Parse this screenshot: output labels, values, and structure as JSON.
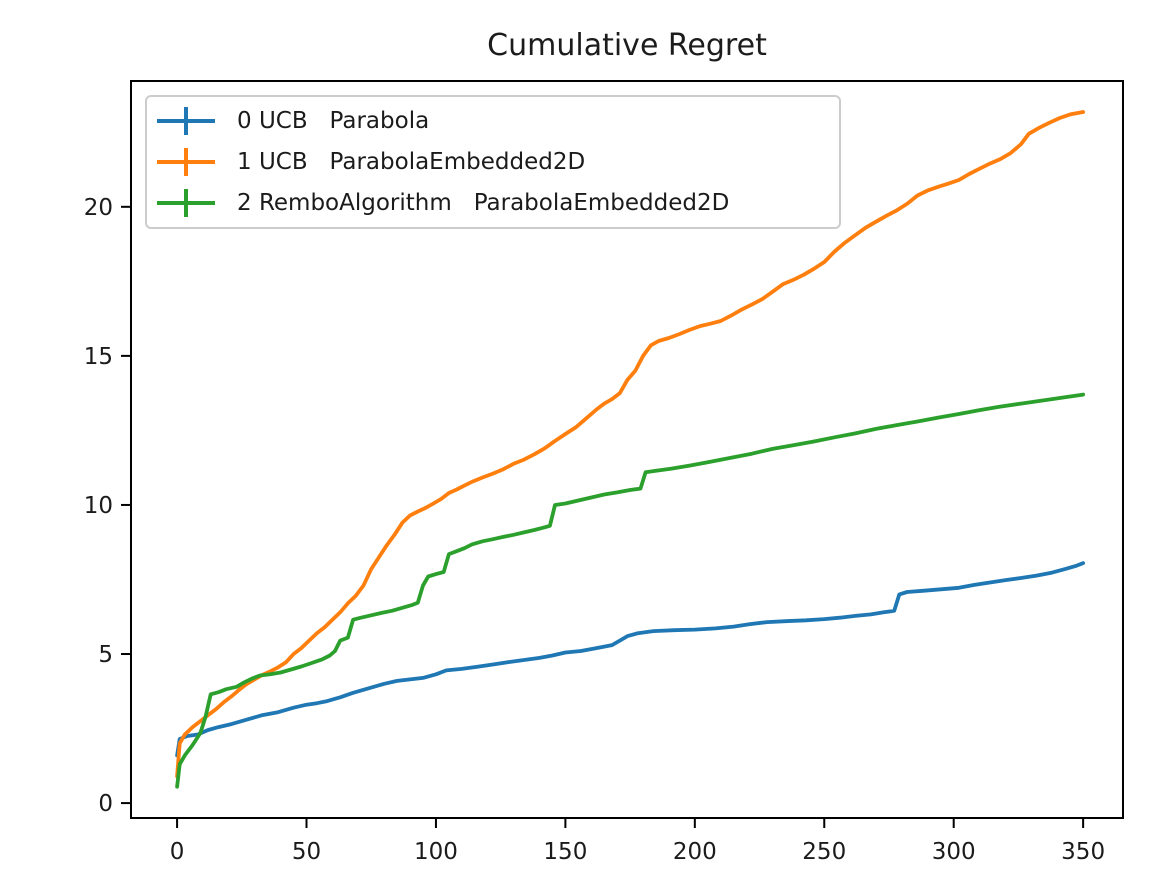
{
  "figure": {
    "background": "#ffffff"
  },
  "chart_data": {
    "type": "line",
    "title": "Cumulative Regret",
    "xlabel": "",
    "ylabel": "",
    "xlim": [
      -17.8,
      365.4
    ],
    "ylim": [
      -0.5,
      24.22
    ],
    "xticks": [
      0,
      50,
      100,
      150,
      200,
      250,
      300,
      350
    ],
    "yticks": [
      0,
      5,
      10,
      15,
      20
    ],
    "grid": false,
    "legend": {
      "position": "upper left",
      "frame": true,
      "handle_style": "errorbar"
    },
    "axis_color": "#000000",
    "tick_label_color": "#1b1b1b",
    "series": [
      {
        "name": "0 UCB   Parabola",
        "color": "#1f77b4",
        "points": [
          [
            0,
            1.6
          ],
          [
            1,
            2.15
          ],
          [
            4,
            2.25
          ],
          [
            8,
            2.3
          ],
          [
            12,
            2.45
          ],
          [
            16,
            2.55
          ],
          [
            21,
            2.65
          ],
          [
            27,
            2.8
          ],
          [
            33,
            2.95
          ],
          [
            39,
            3.05
          ],
          [
            45,
            3.2
          ],
          [
            50,
            3.3
          ],
          [
            54,
            3.35
          ],
          [
            58,
            3.42
          ],
          [
            63,
            3.55
          ],
          [
            68,
            3.7
          ],
          [
            74,
            3.85
          ],
          [
            80,
            4.0
          ],
          [
            85,
            4.1
          ],
          [
            90,
            4.15
          ],
          [
            95,
            4.2
          ],
          [
            100,
            4.32
          ],
          [
            104,
            4.45
          ],
          [
            110,
            4.5
          ],
          [
            116,
            4.57
          ],
          [
            122,
            4.65
          ],
          [
            128,
            4.73
          ],
          [
            134,
            4.8
          ],
          [
            140,
            4.87
          ],
          [
            145,
            4.95
          ],
          [
            150,
            5.05
          ],
          [
            156,
            5.1
          ],
          [
            162,
            5.2
          ],
          [
            168,
            5.3
          ],
          [
            171,
            5.45
          ],
          [
            174,
            5.6
          ],
          [
            178,
            5.7
          ],
          [
            184,
            5.77
          ],
          [
            192,
            5.8
          ],
          [
            200,
            5.82
          ],
          [
            208,
            5.86
          ],
          [
            215,
            5.92
          ],
          [
            221,
            6.0
          ],
          [
            228,
            6.07
          ],
          [
            235,
            6.1
          ],
          [
            243,
            6.13
          ],
          [
            250,
            6.17
          ],
          [
            256,
            6.22
          ],
          [
            262,
            6.28
          ],
          [
            268,
            6.33
          ],
          [
            273,
            6.4
          ],
          [
            277,
            6.45
          ],
          [
            279,
            7.0
          ],
          [
            282,
            7.08
          ],
          [
            288,
            7.12
          ],
          [
            295,
            7.17
          ],
          [
            302,
            7.22
          ],
          [
            308,
            7.32
          ],
          [
            314,
            7.4
          ],
          [
            320,
            7.48
          ],
          [
            326,
            7.55
          ],
          [
            332,
            7.63
          ],
          [
            338,
            7.73
          ],
          [
            343,
            7.85
          ],
          [
            347,
            7.95
          ],
          [
            350,
            8.05
          ]
        ]
      },
      {
        "name": "1 UCB   ParabolaEmbedded2D",
        "color": "#ff7f0e",
        "points": [
          [
            0,
            0.9
          ],
          [
            1,
            2.0
          ],
          [
            3,
            2.3
          ],
          [
            6,
            2.55
          ],
          [
            9,
            2.75
          ],
          [
            12,
            2.95
          ],
          [
            15,
            3.15
          ],
          [
            18,
            3.38
          ],
          [
            21,
            3.58
          ],
          [
            24,
            3.8
          ],
          [
            27,
            4.0
          ],
          [
            30,
            4.15
          ],
          [
            33,
            4.3
          ],
          [
            36,
            4.42
          ],
          [
            39,
            4.55
          ],
          [
            42,
            4.72
          ],
          [
            45,
            5.0
          ],
          [
            48,
            5.2
          ],
          [
            51,
            5.45
          ],
          [
            54,
            5.7
          ],
          [
            57,
            5.9
          ],
          [
            60,
            6.15
          ],
          [
            63,
            6.4
          ],
          [
            66,
            6.7
          ],
          [
            69,
            6.95
          ],
          [
            72,
            7.3
          ],
          [
            75,
            7.85
          ],
          [
            78,
            8.25
          ],
          [
            81,
            8.65
          ],
          [
            84,
            9.0
          ],
          [
            87,
            9.4
          ],
          [
            90,
            9.65
          ],
          [
            93,
            9.78
          ],
          [
            96,
            9.9
          ],
          [
            99,
            10.05
          ],
          [
            102,
            10.2
          ],
          [
            105,
            10.4
          ],
          [
            108,
            10.52
          ],
          [
            111,
            10.65
          ],
          [
            114,
            10.78
          ],
          [
            118,
            10.92
          ],
          [
            122,
            11.05
          ],
          [
            126,
            11.2
          ],
          [
            130,
            11.38
          ],
          [
            134,
            11.52
          ],
          [
            138,
            11.7
          ],
          [
            142,
            11.9
          ],
          [
            146,
            12.15
          ],
          [
            150,
            12.38
          ],
          [
            154,
            12.6
          ],
          [
            158,
            12.9
          ],
          [
            162,
            13.2
          ],
          [
            165,
            13.4
          ],
          [
            168,
            13.55
          ],
          [
            171,
            13.75
          ],
          [
            174,
            14.2
          ],
          [
            177,
            14.5
          ],
          [
            180,
            15.0
          ],
          [
            183,
            15.35
          ],
          [
            186,
            15.5
          ],
          [
            190,
            15.6
          ],
          [
            194,
            15.73
          ],
          [
            198,
            15.87
          ],
          [
            202,
            16.0
          ],
          [
            206,
            16.08
          ],
          [
            210,
            16.17
          ],
          [
            214,
            16.35
          ],
          [
            218,
            16.55
          ],
          [
            222,
            16.72
          ],
          [
            226,
            16.9
          ],
          [
            230,
            17.15
          ],
          [
            234,
            17.4
          ],
          [
            238,
            17.55
          ],
          [
            242,
            17.72
          ],
          [
            246,
            17.92
          ],
          [
            250,
            18.15
          ],
          [
            254,
            18.5
          ],
          [
            258,
            18.8
          ],
          [
            262,
            19.05
          ],
          [
            266,
            19.3
          ],
          [
            270,
            19.5
          ],
          [
            274,
            19.7
          ],
          [
            278,
            19.88
          ],
          [
            282,
            20.1
          ],
          [
            286,
            20.38
          ],
          [
            290,
            20.55
          ],
          [
            294,
            20.67
          ],
          [
            298,
            20.78
          ],
          [
            302,
            20.9
          ],
          [
            306,
            21.1
          ],
          [
            310,
            21.28
          ],
          [
            314,
            21.45
          ],
          [
            318,
            21.6
          ],
          [
            322,
            21.8
          ],
          [
            326,
            22.1
          ],
          [
            329,
            22.45
          ],
          [
            333,
            22.65
          ],
          [
            337,
            22.82
          ],
          [
            341,
            22.98
          ],
          [
            345,
            23.1
          ],
          [
            350,
            23.18
          ]
        ]
      },
      {
        "name": "2 RemboAlgorithm   ParabolaEmbedded2D",
        "color": "#2ca02c",
        "points": [
          [
            0,
            0.55
          ],
          [
            1,
            1.3
          ],
          [
            3,
            1.6
          ],
          [
            6,
            1.95
          ],
          [
            9,
            2.35
          ],
          [
            11,
            2.9
          ],
          [
            13,
            3.65
          ],
          [
            16,
            3.72
          ],
          [
            19,
            3.82
          ],
          [
            23,
            3.9
          ],
          [
            26,
            4.05
          ],
          [
            29,
            4.18
          ],
          [
            32,
            4.28
          ],
          [
            36,
            4.32
          ],
          [
            40,
            4.38
          ],
          [
            44,
            4.48
          ],
          [
            48,
            4.58
          ],
          [
            52,
            4.7
          ],
          [
            56,
            4.82
          ],
          [
            59,
            4.95
          ],
          [
            61,
            5.1
          ],
          [
            63,
            5.45
          ],
          [
            66,
            5.55
          ],
          [
            68,
            6.15
          ],
          [
            71,
            6.22
          ],
          [
            75,
            6.3
          ],
          [
            79,
            6.38
          ],
          [
            83,
            6.45
          ],
          [
            87,
            6.55
          ],
          [
            91,
            6.65
          ],
          [
            93,
            6.72
          ],
          [
            95,
            7.3
          ],
          [
            97,
            7.6
          ],
          [
            100,
            7.68
          ],
          [
            103,
            7.75
          ],
          [
            105,
            8.35
          ],
          [
            108,
            8.45
          ],
          [
            111,
            8.55
          ],
          [
            114,
            8.68
          ],
          [
            118,
            8.78
          ],
          [
            122,
            8.85
          ],
          [
            126,
            8.93
          ],
          [
            130,
            9.0
          ],
          [
            134,
            9.08
          ],
          [
            138,
            9.16
          ],
          [
            142,
            9.25
          ],
          [
            144,
            9.3
          ],
          [
            146,
            10.0
          ],
          [
            150,
            10.05
          ],
          [
            155,
            10.15
          ],
          [
            160,
            10.25
          ],
          [
            165,
            10.35
          ],
          [
            170,
            10.42
          ],
          [
            175,
            10.5
          ],
          [
            179,
            10.55
          ],
          [
            181,
            11.1
          ],
          [
            185,
            11.15
          ],
          [
            191,
            11.22
          ],
          [
            198,
            11.32
          ],
          [
            206,
            11.45
          ],
          [
            214,
            11.58
          ],
          [
            222,
            11.72
          ],
          [
            230,
            11.88
          ],
          [
            238,
            12.0
          ],
          [
            246,
            12.13
          ],
          [
            254,
            12.27
          ],
          [
            262,
            12.4
          ],
          [
            270,
            12.55
          ],
          [
            278,
            12.68
          ],
          [
            286,
            12.8
          ],
          [
            294,
            12.93
          ],
          [
            302,
            13.05
          ],
          [
            310,
            13.18
          ],
          [
            318,
            13.3
          ],
          [
            326,
            13.4
          ],
          [
            334,
            13.5
          ],
          [
            342,
            13.6
          ],
          [
            350,
            13.7
          ]
        ]
      }
    ]
  }
}
